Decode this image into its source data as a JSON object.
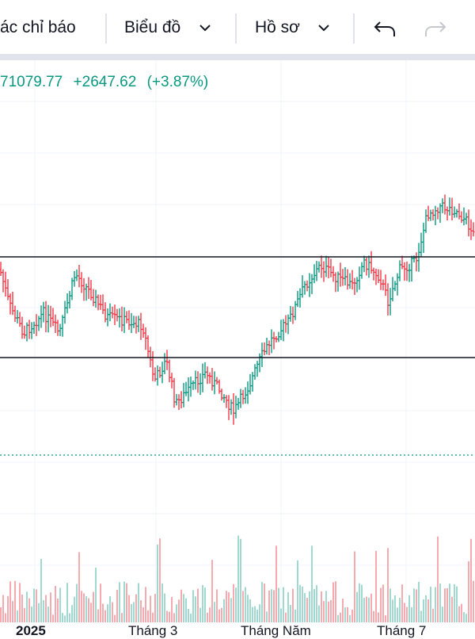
{
  "toolbar": {
    "indicators_label": "ác chỉ báo",
    "chart_label": "Biểu đồ",
    "profile_label": "Hồ sơ"
  },
  "legend": {
    "close": "71079.77",
    "change": "+2647.62",
    "change_pct": "(+3.87%)"
  },
  "colors": {
    "up": "#089981",
    "down": "#f23645",
    "volume_up": "#9fd9cf",
    "volume_down": "#f7a9b0",
    "grid": "#f0f3fa",
    "text": "#131722"
  },
  "x_axis_labels": [
    "2025",
    "Tháng 3",
    "Tháng Năm",
    "Tháng 7"
  ]
}
